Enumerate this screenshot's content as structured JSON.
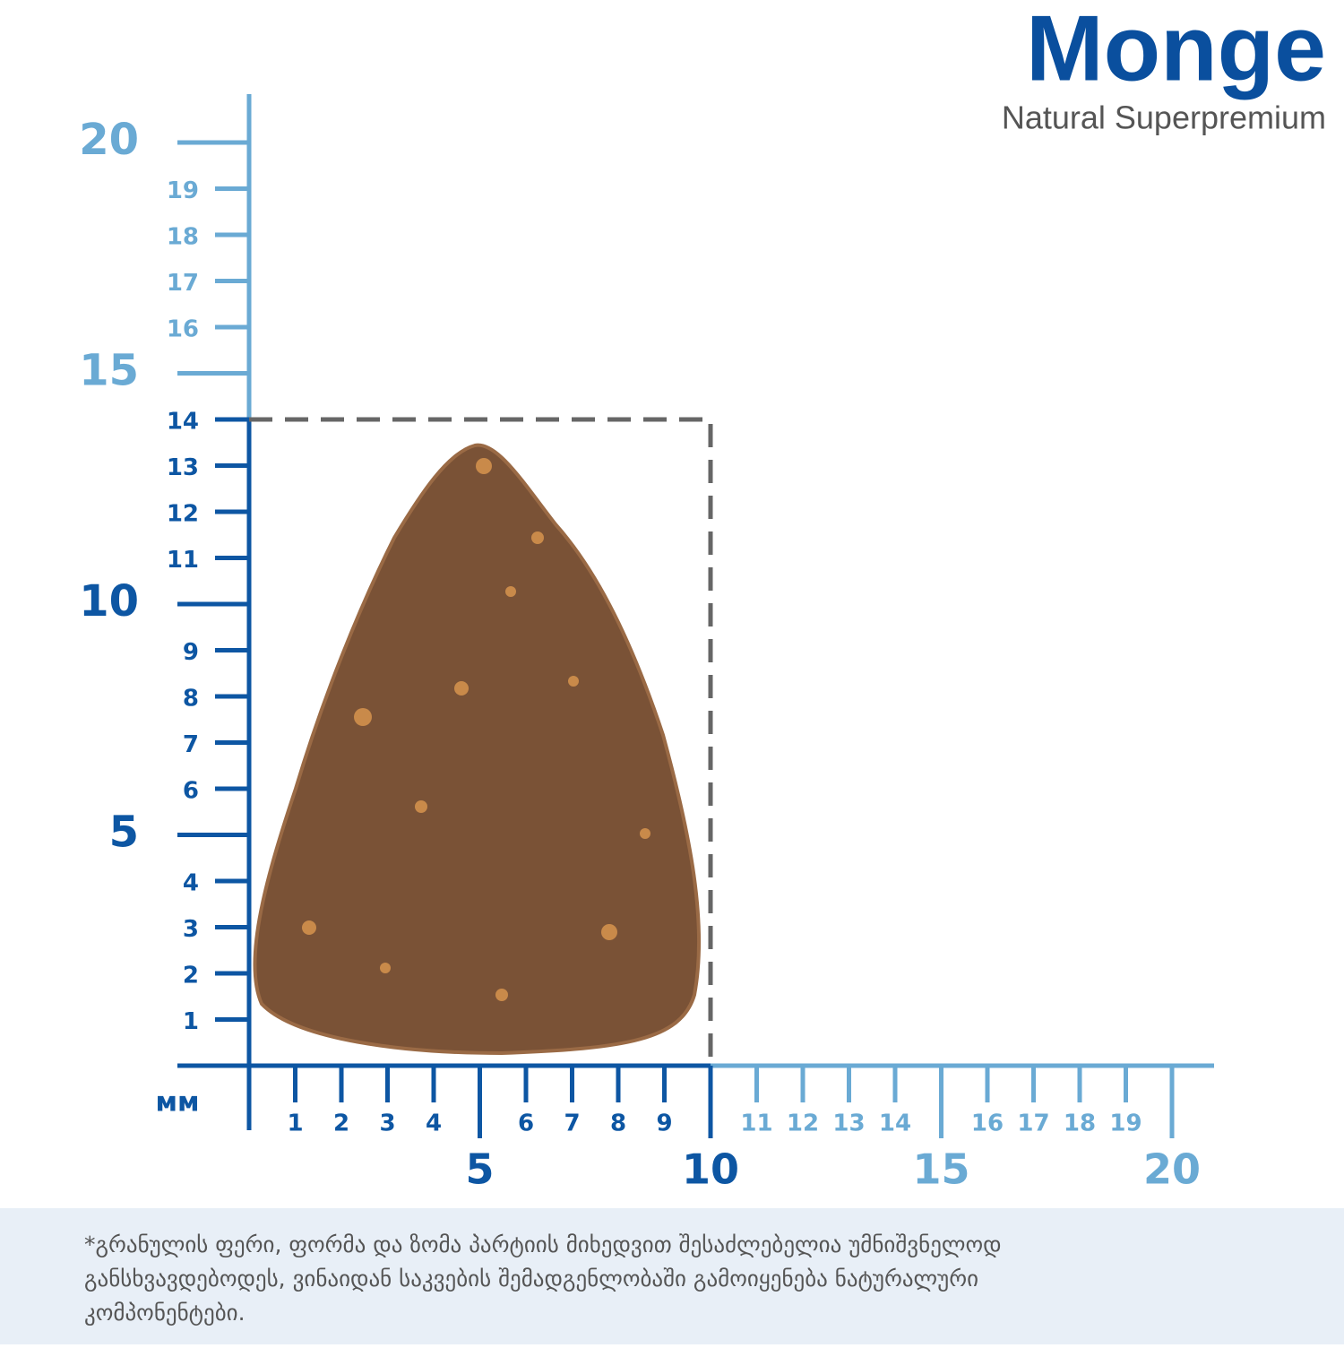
{
  "logo": {
    "brand": "Monge",
    "tagline": "Natural Superpremium"
  },
  "ruler": {
    "unit": "мм",
    "y_ticks": [
      1,
      2,
      3,
      4,
      5,
      6,
      7,
      8,
      9,
      10,
      11,
      12,
      13,
      14,
      15,
      16,
      17,
      18,
      19,
      20
    ],
    "x_ticks": [
      1,
      2,
      3,
      4,
      5,
      6,
      7,
      8,
      9,
      10,
      11,
      12,
      13,
      14,
      15,
      16,
      17,
      18,
      19,
      20
    ],
    "box": {
      "width": 10,
      "height": 14
    }
  },
  "footnote": {
    "lines": [
      "*გრანულის ფერი, ფორმა და ზომა პარტიის მიხედვით შესაძლებელია უმნიშვნელოდ",
      "განსხვავდებოდეს,  ვინაიდან საკვების შემადგენლობაში გამოიყენება ნატურალური",
      "კომპონენტები."
    ]
  }
}
